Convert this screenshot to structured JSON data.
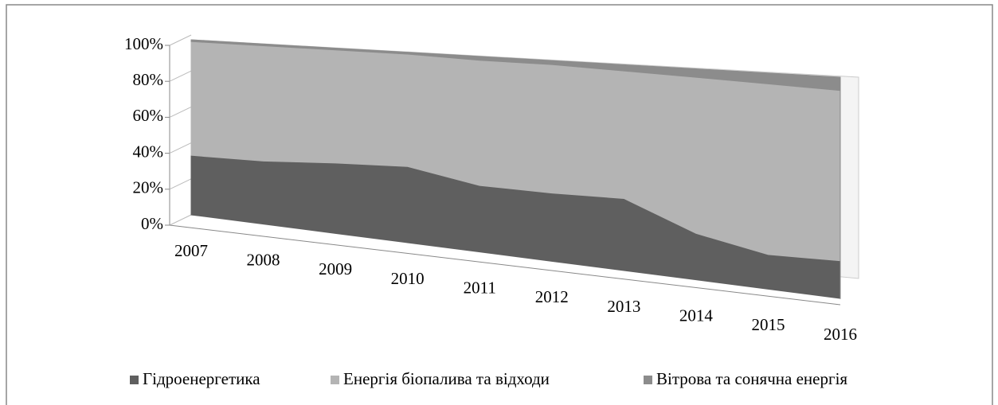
{
  "chart_data": {
    "type": "area3d_stacked_percent",
    "categories": [
      "2007",
      "2008",
      "2009",
      "2010",
      "2011",
      "2012",
      "2013",
      "2014",
      "2015",
      "2016"
    ],
    "series": [
      {
        "name": "Гідроенергетика",
        "color": "#5f5f5f",
        "values": [
          34,
          35,
          38,
          40,
          34,
          34,
          35,
          22,
          16,
          17
        ]
      },
      {
        "name": "Енергія біопалива та відходи",
        "color": "#b4b4b4",
        "values": [
          65,
          64,
          61,
          59,
          64,
          64,
          62,
          74,
          79,
          77
        ]
      },
      {
        "name": "Вітрова та сонячна енергія",
        "color": "#8c8c8c",
        "values": [
          1,
          1,
          1,
          1,
          2,
          2,
          3,
          4,
          5,
          6
        ]
      }
    ],
    "ylim": [
      0,
      100
    ],
    "yticks": [
      {
        "value": 0,
        "label": "0%"
      },
      {
        "value": 20,
        "label": "20%"
      },
      {
        "value": 40,
        "label": "40%"
      },
      {
        "value": 60,
        "label": "60%"
      },
      {
        "value": 80,
        "label": "80%"
      },
      {
        "value": 100,
        "label": "100%"
      }
    ],
    "legend": "bottom"
  }
}
